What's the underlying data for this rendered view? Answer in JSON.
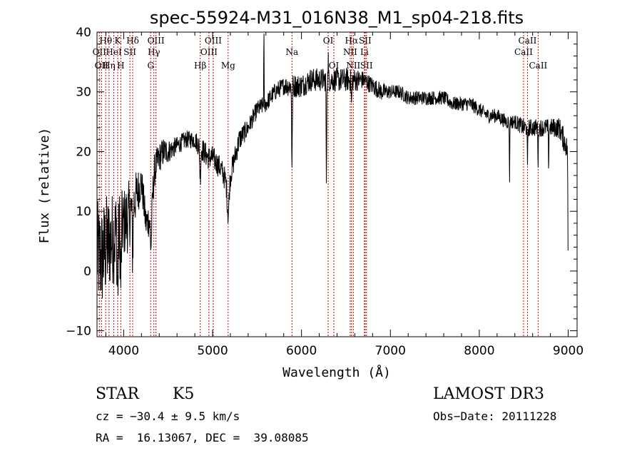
{
  "chart_data": {
    "type": "line",
    "title": "spec-55924-M31_016N38_M1_sp04-218.fits",
    "xlabel": "Wavelength (Å)",
    "ylabel": "Flux (relative)",
    "xlim": [
      3700,
      9100
    ],
    "ylim": [
      -11,
      40
    ],
    "xticks": [
      4000,
      5000,
      6000,
      7000,
      8000,
      9000
    ],
    "xtick_labels": [
      "4000",
      "5000",
      "6000",
      "7000",
      "8000",
      "9000"
    ],
    "yticks": [
      -10,
      0,
      10,
      20,
      30,
      40
    ],
    "ytick_labels": [
      "−10",
      "0",
      "10",
      "20",
      "30",
      "40"
    ],
    "line_color": "#000000",
    "marker_color": "#cc0000",
    "continuum": {
      "x": [
        3700,
        3750,
        3800,
        3850,
        3900,
        3950,
        4000,
        4050,
        4100,
        4150,
        4200,
        4250,
        4300,
        4350,
        4400,
        4450,
        4500,
        4600,
        4700,
        4800,
        4850,
        4900,
        4950,
        5000,
        5050,
        5100,
        5150,
        5200,
        5250,
        5300,
        5400,
        5500,
        5600,
        5700,
        5800,
        5900,
        6000,
        6100,
        6200,
        6300,
        6400,
        6500,
        6600,
        6700,
        6800,
        6900,
        7000,
        7100,
        7200,
        7300,
        7400,
        7500,
        7600,
        7700,
        7800,
        7900,
        8000,
        8100,
        8200,
        8300,
        8400,
        8500,
        8600,
        8700,
        8800,
        8900,
        8950,
        9000
      ],
      "y": [
        3,
        2,
        4,
        5,
        6,
        7,
        8,
        9,
        11,
        13,
        15,
        8,
        9,
        17,
        19,
        20,
        20,
        21,
        22,
        22,
        21,
        20,
        19,
        19,
        18,
        17,
        15,
        16,
        19,
        22,
        24,
        27,
        28,
        30,
        31,
        31,
        31,
        32,
        32,
        32,
        32,
        32,
        32,
        32,
        31,
        30,
        30,
        30,
        29,
        29,
        29,
        29,
        29,
        28,
        28,
        28,
        27,
        26,
        26,
        25,
        25,
        24,
        24,
        24,
        24,
        24,
        22,
        20
      ],
      "noise": [
        9,
        9,
        9,
        8,
        8,
        7,
        6,
        6,
        5,
        4,
        3,
        3,
        3,
        3,
        2.5,
        2.5,
        2,
        1.5,
        1.5,
        1.5,
        2,
        2,
        2,
        2,
        2,
        2,
        2,
        2,
        2,
        2,
        1.5,
        1.5,
        1.5,
        1.5,
        1.5,
        2,
        2,
        2,
        2,
        2,
        2,
        2,
        2,
        1.5,
        1.5,
        1.5,
        1.2,
        1.2,
        1.2,
        1.2,
        1.2,
        1.2,
        1.2,
        1.2,
        1.2,
        1.2,
        1.2,
        1.2,
        1.2,
        1.2,
        1.2,
        1.5,
        1.5,
        1.5,
        1.5,
        1.8,
        2,
        2
      ]
    },
    "absorption_features": [
      {
        "x": 3933,
        "depth": 10,
        "width": 8
      },
      {
        "x": 3968,
        "depth": 9,
        "width": 8
      },
      {
        "x": 4101,
        "depth": 8,
        "width": 8
      },
      {
        "x": 4308,
        "depth": 6,
        "width": 12
      },
      {
        "x": 4861,
        "depth": 5,
        "width": 8
      },
      {
        "x": 5175,
        "depth": 6,
        "width": 15
      },
      {
        "x": 5893,
        "depth": 14,
        "width": 5
      },
      {
        "x": 6280,
        "depth": 19,
        "width": 4
      },
      {
        "x": 6563,
        "depth": 4,
        "width": 6
      },
      {
        "x": 8340,
        "depth": 11,
        "width": 3
      },
      {
        "x": 8542,
        "depth": 7,
        "width": 4
      },
      {
        "x": 8662,
        "depth": 6,
        "width": 4
      },
      {
        "x": 8780,
        "depth": 6,
        "width": 4
      },
      {
        "x": 8998,
        "depth": 18,
        "width": 3
      }
    ],
    "emission_features": [
      {
        "x": 5577,
        "height": 12,
        "width": 3
      },
      {
        "x": 6300,
        "height": 4,
        "width": 3
      }
    ],
    "line_markers": [
      {
        "x": 3726,
        "label": "OII",
        "row": 2
      },
      {
        "x": 3750,
        "label": "OII",
        "row": 3
      },
      {
        "x": 3798,
        "label": "Hθ",
        "row": 1
      },
      {
        "x": 3835,
        "label": "Hη",
        "row": 3
      },
      {
        "x": 3889,
        "label": "HeI",
        "row": 2
      },
      {
        "x": 3933,
        "label": "K",
        "row": 1
      },
      {
        "x": 3968,
        "label": "H",
        "row": 3
      },
      {
        "x": 4070,
        "label": "SII",
        "row": 2
      },
      {
        "x": 4101,
        "label": "Hδ",
        "row": 1
      },
      {
        "x": 4304,
        "label": "G",
        "row": 3
      },
      {
        "x": 4340,
        "label": "Hγ",
        "row": 2
      },
      {
        "x": 4363,
        "label": "OIII",
        "row": 1
      },
      {
        "x": 4861,
        "label": "Hβ",
        "row": 3
      },
      {
        "x": 4959,
        "label": "OIII",
        "row": 2
      },
      {
        "x": 5007,
        "label": "OIII",
        "row": 1
      },
      {
        "x": 5175,
        "label": "Mg",
        "row": 3
      },
      {
        "x": 5893,
        "label": "Na",
        "row": 2
      },
      {
        "x": 6300,
        "label": "OI",
        "row": 1
      },
      {
        "x": 6364,
        "label": "OI",
        "row": 3
      },
      {
        "x": 6548,
        "label": "NII",
        "row": 2
      },
      {
        "x": 6563,
        "label": "Hα",
        "row": 1
      },
      {
        "x": 6583,
        "label": "NII",
        "row": 3
      },
      {
        "x": 6708,
        "label": "Li",
        "row": 2
      },
      {
        "x": 6716,
        "label": "SII",
        "row": 1
      },
      {
        "x": 6731,
        "label": "SII",
        "row": 3
      },
      {
        "x": 8498,
        "label": "CaII",
        "row": 2
      },
      {
        "x": 8542,
        "label": "CaII",
        "row": 1
      },
      {
        "x": 8662,
        "label": "CaII",
        "row": 3
      }
    ]
  },
  "info": {
    "class": "STAR",
    "subclass": "K5",
    "survey": "LAMOST DR3",
    "cz": "cz = −30.4 ± 9.5 km/s",
    "obsdate": "Obs−Date: 20111228",
    "radec": "RA =  16.13067, DEC =  39.08085"
  }
}
